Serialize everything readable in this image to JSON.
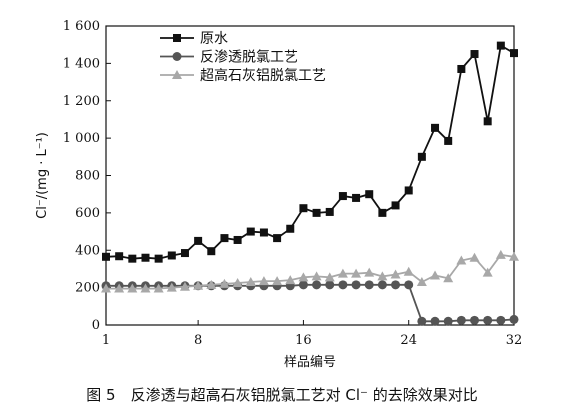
{
  "chart_data": {
    "type": "line",
    "caption": "图 5　反渗透与超高石灰铝脱氯工艺对 Cl⁻ 的去除效果对比",
    "xlabel": "样品编号",
    "ylabel": "Cl⁻/(mg · L⁻¹)",
    "xlim": [
      1,
      32
    ],
    "ylim": [
      0,
      1600
    ],
    "xticks": [
      1,
      8,
      16,
      24,
      32
    ],
    "yticks": [
      0,
      200,
      400,
      600,
      800,
      1000,
      1200,
      1400,
      1600
    ],
    "ytick_labels": [
      "0",
      "200",
      "400",
      "600",
      "800",
      "1 000",
      "1 200",
      "1 400",
      "1 600"
    ],
    "legend_position": "top-left",
    "x": [
      1,
      2,
      3,
      4,
      5,
      6,
      7,
      8,
      9,
      10,
      11,
      12,
      13,
      14,
      15,
      16,
      17,
      18,
      19,
      20,
      21,
      22,
      23,
      24,
      25,
      26,
      27,
      28,
      29,
      30,
      31,
      32
    ],
    "series": [
      {
        "name": "原水",
        "marker": "square",
        "color": "#111111",
        "values": [
          365,
          368,
          355,
          360,
          355,
          372,
          385,
          450,
          395,
          465,
          455,
          500,
          495,
          465,
          515,
          625,
          600,
          605,
          690,
          680,
          700,
          600,
          640,
          720,
          900,
          1055,
          985,
          1370,
          1450,
          1090,
          1495,
          1455
        ]
      },
      {
        "name": "反渗透脱氯工艺",
        "marker": "circle",
        "color": "#555555",
        "values": [
          210,
          210,
          210,
          210,
          210,
          210,
          210,
          210,
          210,
          210,
          210,
          210,
          210,
          210,
          210,
          215,
          215,
          215,
          215,
          215,
          215,
          215,
          215,
          215,
          20,
          20,
          20,
          25,
          25,
          25,
          25,
          30
        ]
      },
      {
        "name": "超高石灰铝脱氯工艺",
        "marker": "triangle",
        "color": "#a8a8a8",
        "values": [
          195,
          195,
          195,
          195,
          195,
          200,
          205,
          210,
          215,
          220,
          225,
          230,
          235,
          235,
          240,
          255,
          260,
          255,
          275,
          275,
          280,
          260,
          270,
          285,
          230,
          265,
          250,
          345,
          360,
          280,
          375,
          365
        ]
      }
    ]
  }
}
